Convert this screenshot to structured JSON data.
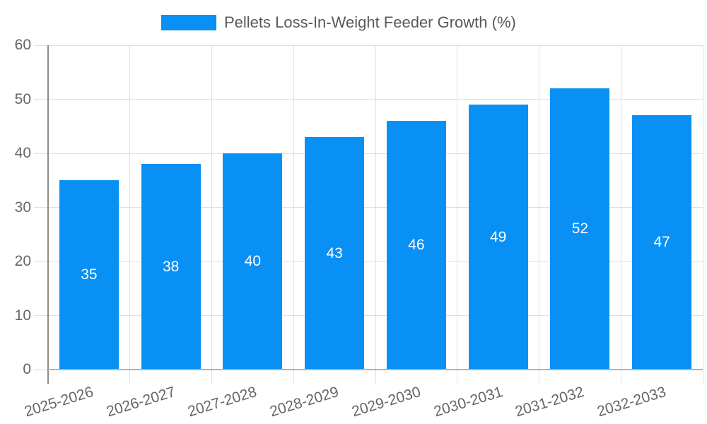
{
  "legend": {
    "label": "Pellets Loss-In-Weight Feeder Growth (%)"
  },
  "chart_data": {
    "type": "bar",
    "title": "",
    "xlabel": "",
    "ylabel": "",
    "categories": [
      "2025-2026",
      "2026-2027",
      "2027-2028",
      "2028-2029",
      "2029-2030",
      "2030-2031",
      "2031-2032",
      "2032-2033"
    ],
    "series": [
      {
        "name": "Pellets Loss-In-Weight Feeder Growth (%)",
        "values": [
          35,
          38,
          40,
          43,
          46,
          49,
          52,
          47
        ]
      }
    ],
    "value_labels_shown": true,
    "ylim": [
      0,
      60
    ],
    "yticks": [
      0,
      10,
      20,
      30,
      40,
      50,
      60
    ],
    "grid": true,
    "legend_position": "top"
  },
  "colors": {
    "bar": "#0890f5",
    "grid": "#e0e0e0",
    "tick": "#d6d6d6",
    "axis_y": "#8c8c8c",
    "axis_x": "#b3b3b3",
    "tick_label": "#666666",
    "legend_text": "#595959",
    "value_label": "#ffffff",
    "background": "#ffffff"
  }
}
